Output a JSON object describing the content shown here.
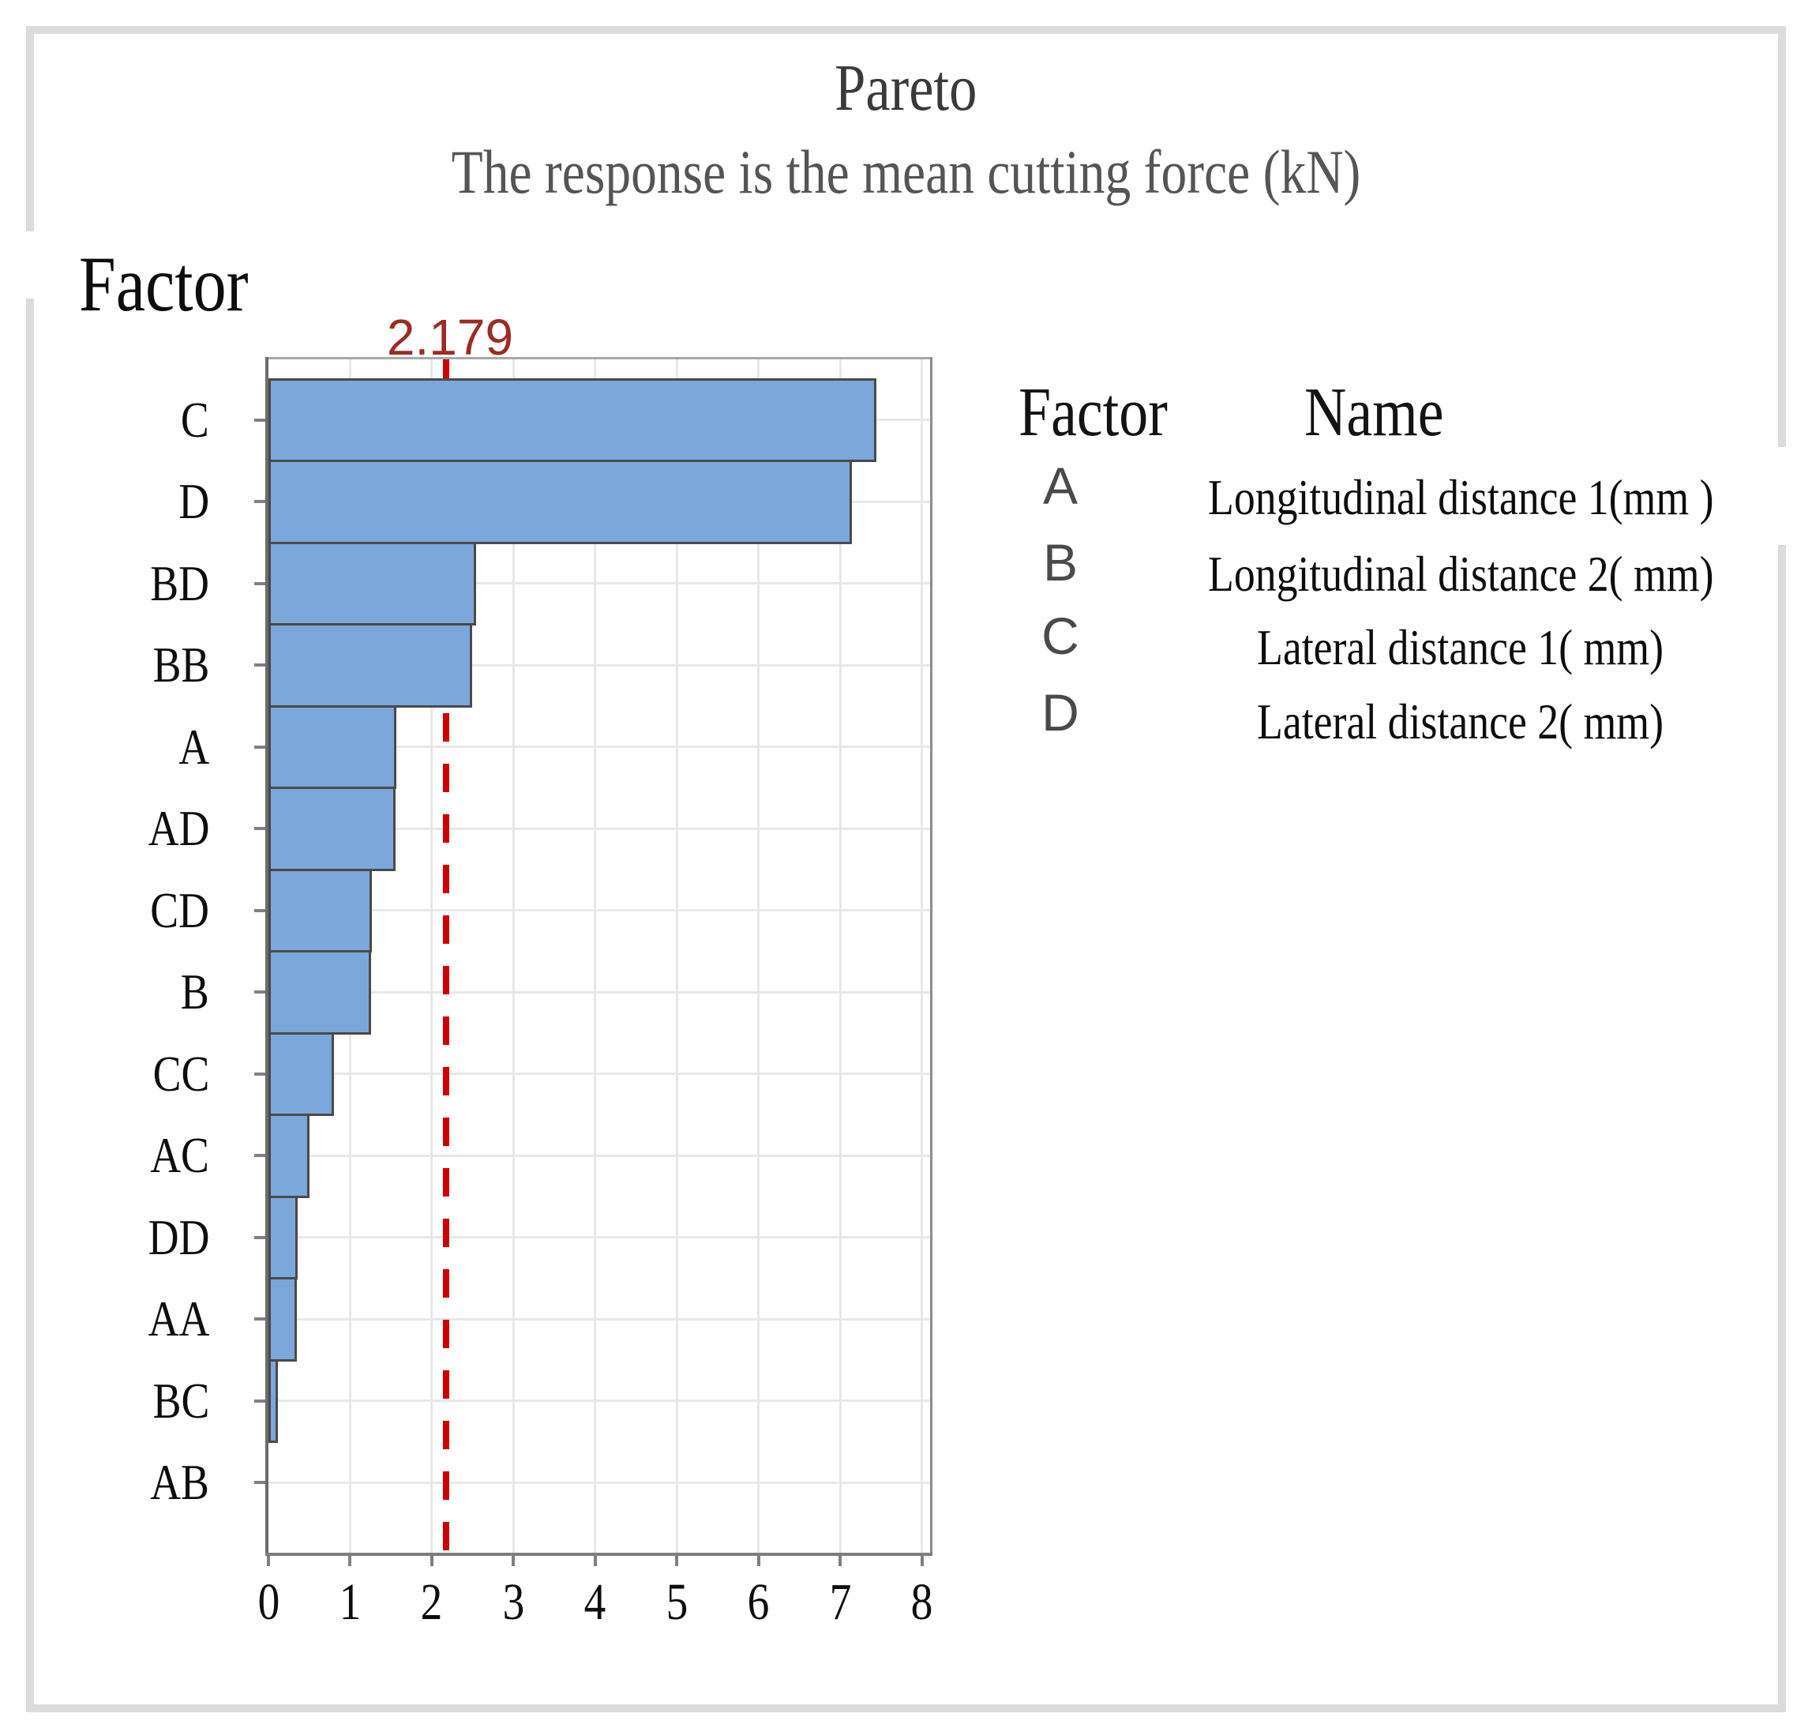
{
  "chart_data": {
    "type": "bar",
    "orientation": "horizontal",
    "title": "Pareto",
    "subtitle": "The response is the mean cutting force (kN)",
    "ylabel": "Factor",
    "xlabel": "",
    "xlim": [
      0,
      8.1
    ],
    "x_ticks": [
      0,
      1,
      2,
      3,
      4,
      5,
      6,
      7,
      8
    ],
    "grid": true,
    "legend_position": "right",
    "reference_line": {
      "value": 2.179,
      "label": "2.179"
    },
    "categories": [
      "C",
      "D",
      "BD",
      "BB",
      "A",
      "AD",
      "CD",
      "B",
      "CC",
      "AC",
      "DD",
      "AA",
      "BC",
      "AB"
    ],
    "values": [
      7.41,
      7.11,
      2.51,
      2.46,
      1.54,
      1.53,
      1.24,
      1.23,
      0.77,
      0.47,
      0.33,
      0.32,
      0.09,
      0.02
    ],
    "colors": {
      "bar_fill": "#7CA7DA",
      "bar_border": "#4A4A4A",
      "reference_line": "#CC0000",
      "reference_label": "#9C2B23",
      "gridline": "#E8E8E8"
    }
  },
  "legend": {
    "header": {
      "factor": "Factor",
      "name": "Name"
    },
    "rows": [
      {
        "factor": "A",
        "name": "Longitudinal distance 1(mm )"
      },
      {
        "factor": "B",
        "name": "Longitudinal distance 2( mm)"
      },
      {
        "factor": "C",
        "name": "Lateral distance 1( mm)"
      },
      {
        "factor": "D",
        "name": "Lateral distance 2( mm)"
      }
    ]
  }
}
